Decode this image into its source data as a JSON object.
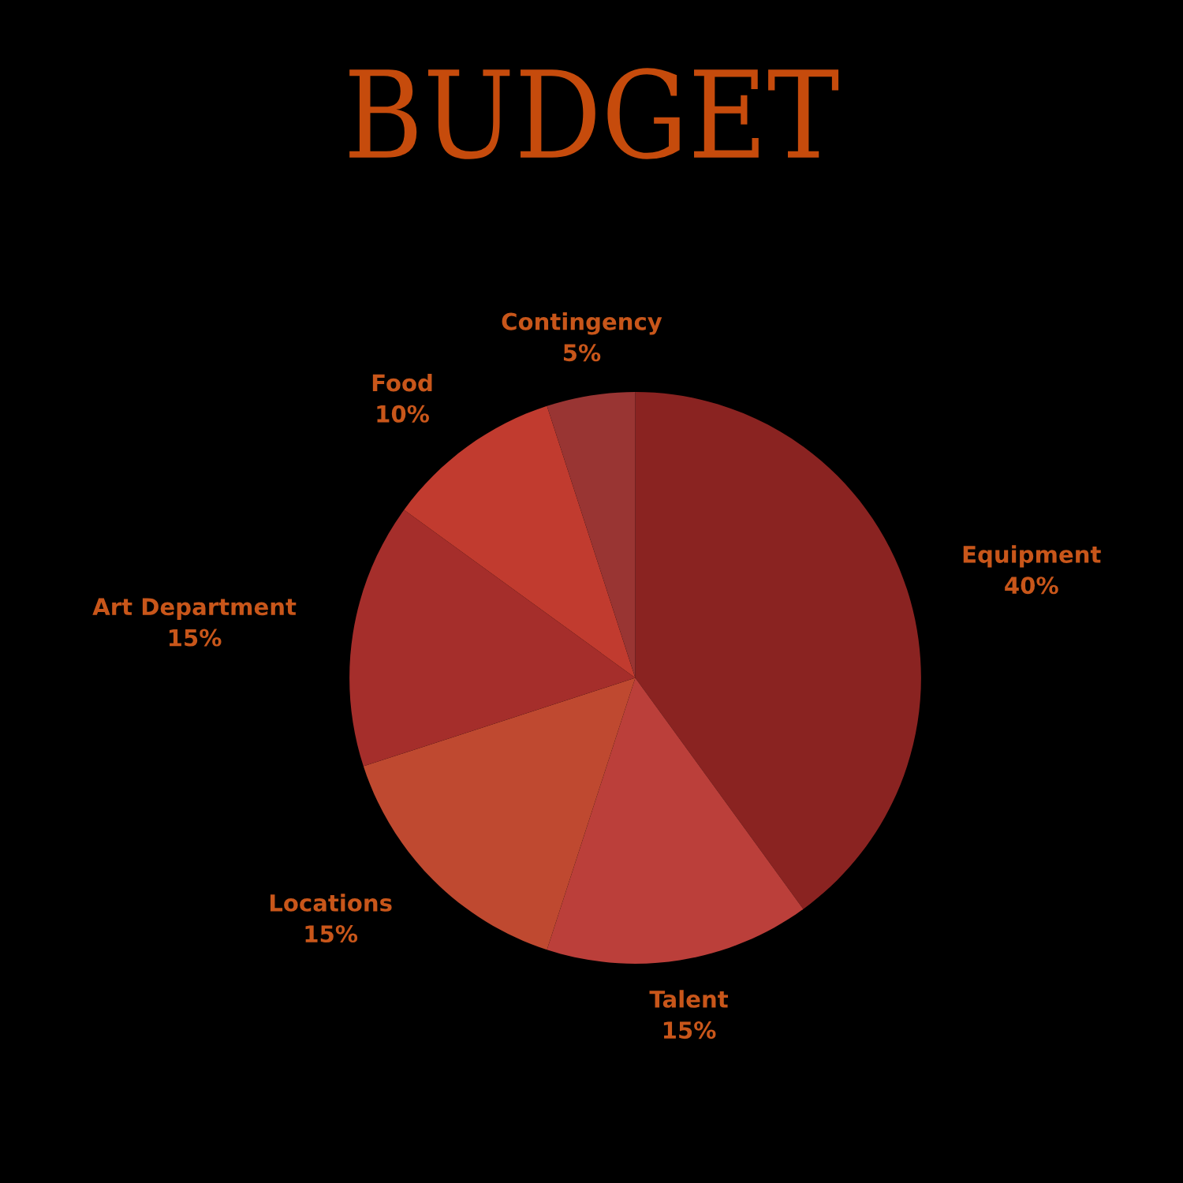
{
  "chart_data": {
    "type": "pie",
    "title": "BUDGET",
    "categories": [
      "Equipment",
      "Talent",
      "Locations",
      "Art Department",
      "Food",
      "Contingency"
    ],
    "values": [
      40,
      15,
      15,
      15,
      10,
      5
    ],
    "value_labels": [
      "40%",
      "15%",
      "15%",
      "15%",
      "10%",
      "5%"
    ],
    "colors": [
      "#8a2321",
      "#bb3f3a",
      "#bf4930",
      "#a52e2b",
      "#c13b2f",
      "#993533"
    ]
  }
}
